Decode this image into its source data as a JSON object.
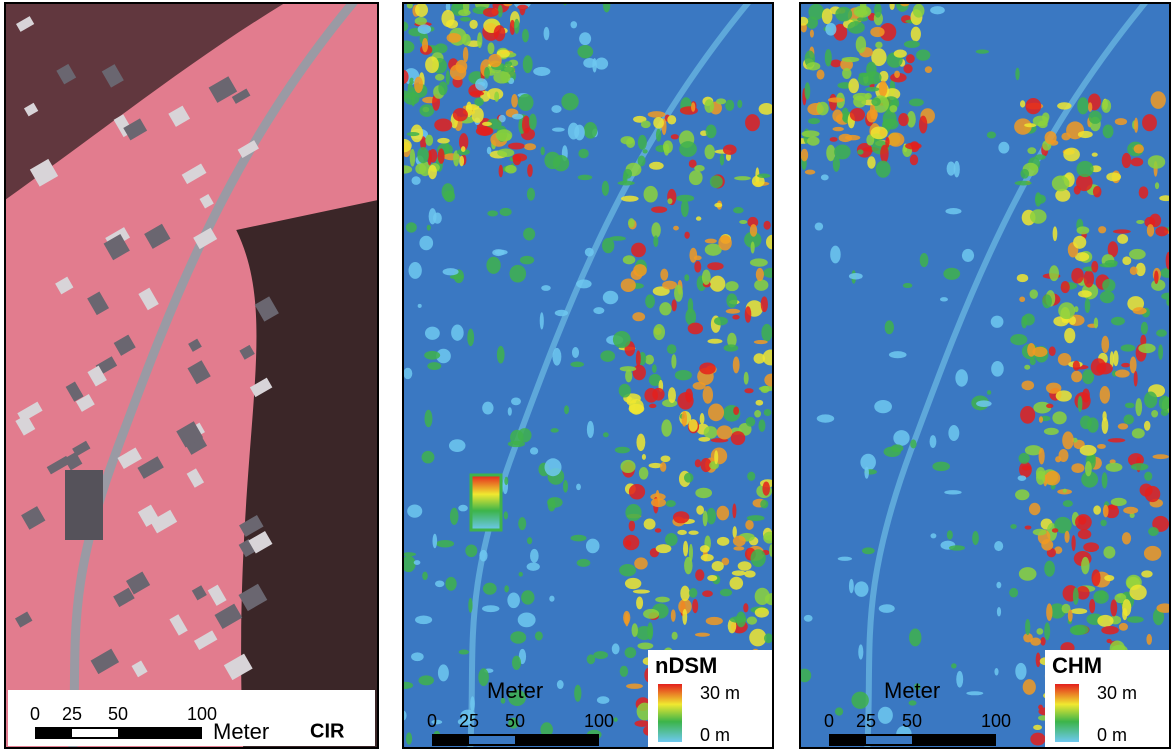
{
  "panels": [
    {
      "label": "CIR",
      "scale": {
        "ticks": [
          "0",
          "25",
          "50",
          "100"
        ],
        "unit": "Meter"
      }
    },
    {
      "label": "nDSM",
      "scale": {
        "ticks": [
          "0",
          "25",
          "50",
          "100"
        ],
        "unit": "Meter"
      },
      "legend": {
        "max": "30 m",
        "min": "0 m"
      }
    },
    {
      "label": "CHM",
      "scale": {
        "ticks": [
          "0",
          "25",
          "50",
          "100"
        ],
        "unit": "Meter"
      },
      "legend": {
        "max": "30 m",
        "min": "0 m"
      }
    }
  ]
}
